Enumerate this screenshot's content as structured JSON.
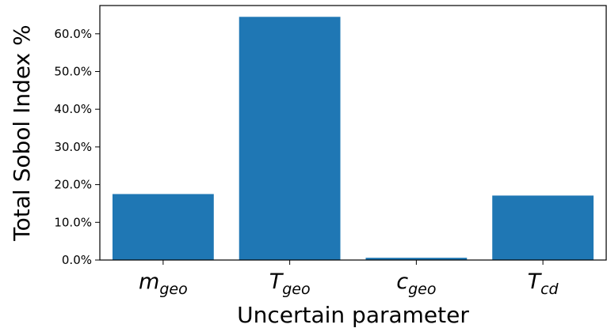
{
  "chart_data": {
    "type": "bar",
    "categories": [
      {
        "base": "m",
        "sub": "geo"
      },
      {
        "base": "T",
        "sub": "geo"
      },
      {
        "base": "c",
        "sub": "geo"
      },
      {
        "base": "T",
        "sub": "cd"
      }
    ],
    "values": [
      17.5,
      64.5,
      0.6,
      17.1
    ],
    "xlabel": "Uncertain parameter",
    "ylabel": "Total Sobol Index %",
    "ylim": [
      0,
      67.5
    ],
    "yticks": [
      "0.0%",
      "10.0%",
      "20.0%",
      "30.0%",
      "40.0%",
      "50.0%",
      "60.0%"
    ],
    "ytick_values": [
      0,
      10,
      20,
      30,
      40,
      50,
      60
    ],
    "bar_color": "#1f77b4",
    "grid": false
  }
}
